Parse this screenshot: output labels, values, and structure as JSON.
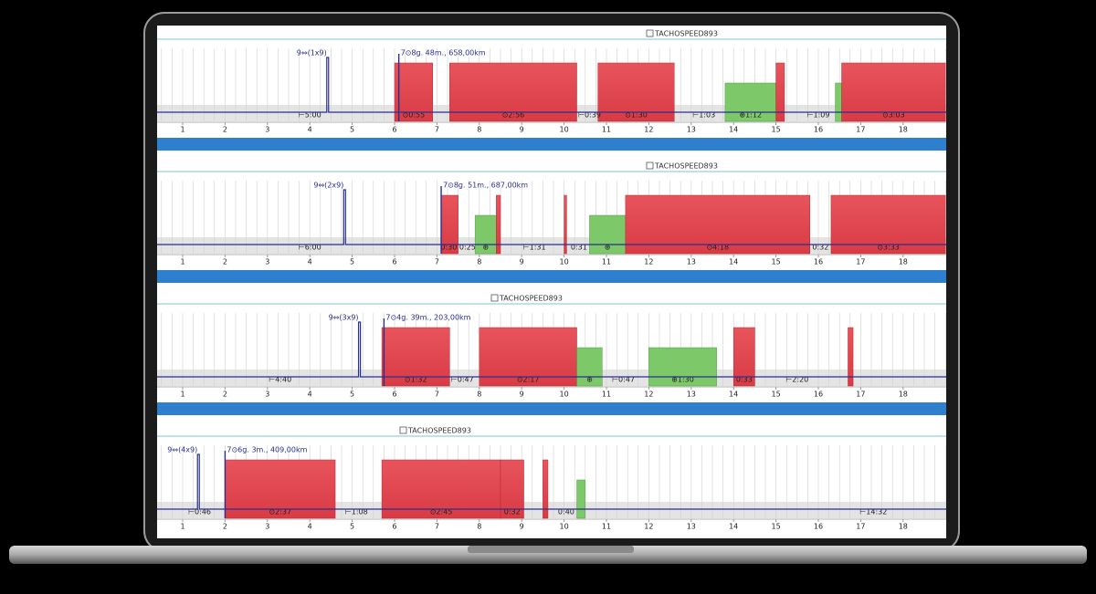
{
  "hours": [
    1,
    2,
    3,
    4,
    5,
    6,
    7,
    8,
    9,
    10,
    11,
    12,
    13,
    14,
    15,
    16,
    17,
    18
  ],
  "panels": [
    {
      "title": "TACHOSPEED893",
      "rest_note": {
        "text": "9⇔(1x9)",
        "at": 4.4
      },
      "trip_note": {
        "text": "7⊙8g. 48m., 658,00km",
        "at": 6.1
      },
      "segments": [
        {
          "kind": "drive",
          "start": 6.0,
          "end": 6.9,
          "label": "⊙0:55"
        },
        {
          "kind": "drive",
          "start": 7.3,
          "end": 10.3,
          "label": "⊙2:56"
        },
        {
          "kind": "drive",
          "start": 10.8,
          "end": 12.6,
          "label": "⊙1:30"
        },
        {
          "kind": "work",
          "start": 13.8,
          "end": 15.0,
          "label": "⊕1:12"
        },
        {
          "kind": "drive",
          "start": 15.0,
          "end": 15.2
        },
        {
          "kind": "work",
          "start": 16.4,
          "end": 16.55
        },
        {
          "kind": "drive",
          "start": 16.55,
          "end": 19.0,
          "label": "⊙3:03"
        }
      ],
      "labels": [
        {
          "text": "⊢5:00",
          "at": 4.0
        },
        {
          "text": "⊢0:39",
          "at": 10.6
        },
        {
          "text": "⊢1:03",
          "at": 13.3
        },
        {
          "text": "⊢1:09",
          "at": 16.0
        }
      ]
    },
    {
      "title": "TACHOSPEED893",
      "rest_note": {
        "text": "9⇔(2x9)",
        "at": 4.8
      },
      "trip_note": {
        "text": "7⊙8g. 51m., 687,00km",
        "at": 7.1
      },
      "segments": [
        {
          "kind": "drive",
          "start": 7.1,
          "end": 7.5
        },
        {
          "kind": "work",
          "start": 7.9,
          "end": 8.4,
          "label": "⊕"
        },
        {
          "kind": "drive",
          "start": 8.4,
          "end": 8.5
        },
        {
          "kind": "drive",
          "start": 10.0,
          "end": 10.06
        },
        {
          "kind": "work",
          "start": 10.6,
          "end": 11.45,
          "label": "⊕"
        },
        {
          "kind": "drive",
          "start": 11.45,
          "end": 15.8,
          "label": "⊙4:18"
        },
        {
          "kind": "drive",
          "start": 16.3,
          "end": 19.0,
          "label": "⊙3:33"
        }
      ],
      "labels": [
        {
          "text": "⊢6:00",
          "at": 4.0
        },
        {
          "text": "0:30 0:25",
          "at": 7.5
        },
        {
          "text": "⊢1:31",
          "at": 9.3
        },
        {
          "text": "0:31",
          "at": 10.35
        },
        {
          "text": "0:32",
          "at": 16.05
        }
      ]
    },
    {
      "title": "TACHOSPEED893",
      "rest_note": {
        "text": "9⇔(3x9)",
        "at": 5.15
      },
      "trip_note": {
        "text": "7⊙4g. 39m., 203,00km",
        "at": 5.75
      },
      "segments": [
        {
          "kind": "drive",
          "start": 5.7,
          "end": 7.3,
          "label": "⊙1:32"
        },
        {
          "kind": "drive",
          "start": 8.0,
          "end": 10.3,
          "label": "⊙2:17"
        },
        {
          "kind": "work",
          "start": 10.3,
          "end": 10.9,
          "label": "⊕"
        },
        {
          "kind": "work",
          "start": 12.0,
          "end": 13.6,
          "label": "⊕1:30"
        },
        {
          "kind": "drive",
          "start": 14.0,
          "end": 14.5,
          "label": "0:33"
        },
        {
          "kind": "drive",
          "start": 16.7,
          "end": 16.82
        }
      ],
      "labels": [
        {
          "text": "⊢4:40",
          "at": 3.3
        },
        {
          "text": "⊢0:47",
          "at": 7.6
        },
        {
          "text": "⊢0:47",
          "at": 11.4
        },
        {
          "text": "⊢2:20",
          "at": 15.5
        }
      ]
    },
    {
      "title": "TACHOSPEED893",
      "rest_note": {
        "text": "9⇔(4x9)",
        "at": 1.35
      },
      "trip_note": {
        "text": "7⊙6g. 3m., 409,00km",
        "at": 2.0
      },
      "segments": [
        {
          "kind": "drive",
          "start": 2.0,
          "end": 4.6,
          "label": "⊙2:37"
        },
        {
          "kind": "drive",
          "start": 5.7,
          "end": 8.5,
          "label": "⊙2:45"
        },
        {
          "kind": "drive",
          "start": 8.5,
          "end": 9.05,
          "label": "0:32"
        },
        {
          "kind": "drive",
          "start": 9.5,
          "end": 9.62
        },
        {
          "kind": "work",
          "start": 10.3,
          "end": 10.5
        }
      ],
      "labels": [
        {
          "text": "⊢0:46",
          "at": 1.4
        },
        {
          "text": "⊢1:08",
          "at": 5.1
        },
        {
          "text": "0:40",
          "at": 10.05
        },
        {
          "text": "⊢14:32",
          "at": 17.3
        }
      ]
    }
  ]
}
